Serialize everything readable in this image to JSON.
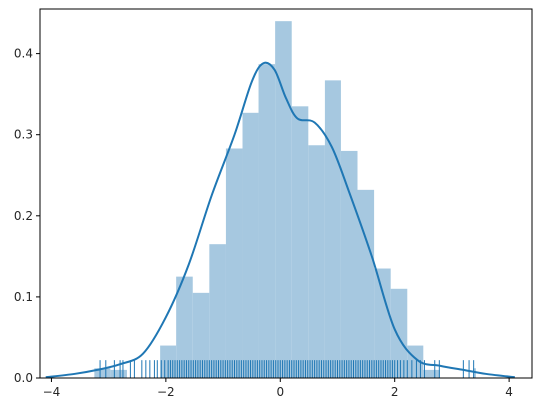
{
  "chart_data": {
    "type": "histogram",
    "title": "",
    "xlabel": "",
    "ylabel": "",
    "xlim": [
      -4.2,
      4.4
    ],
    "ylim": [
      0,
      0.455
    ],
    "xticks": [
      -4,
      -2,
      0,
      2,
      4
    ],
    "xtick_labels": [
      "−4",
      "−2",
      "0",
      "2",
      "4"
    ],
    "yticks": [
      0.0,
      0.1,
      0.2,
      0.3,
      0.4
    ],
    "ytick_labels": [
      "0.0",
      "0.1",
      "0.2",
      "0.3",
      "0.4"
    ],
    "grid": false,
    "legend": "none",
    "colors": {
      "bars": "#a6c8e0",
      "kde": "#1f77b4",
      "rug": "#1f77b4",
      "axes": "#000000"
    },
    "histogram": {
      "bin_edges": [
        -3.25,
        -2.97,
        -2.68,
        -2.39,
        -2.1,
        -1.82,
        -1.53,
        -1.24,
        -0.95,
        -0.66,
        -0.38,
        -0.09,
        0.2,
        0.49,
        0.78,
        1.06,
        1.35,
        1.64,
        1.93,
        2.22,
        2.5,
        2.79,
        3.08,
        3.37,
        3.42
      ],
      "densities": [
        0.012,
        0.01,
        0.0,
        0.0,
        0.04,
        0.125,
        0.105,
        0.165,
        0.283,
        0.327,
        0.387,
        0.44,
        0.335,
        0.287,
        0.367,
        0.28,
        0.232,
        0.135,
        0.11,
        0.04,
        0.01,
        0.0,
        0.0,
        0.012
      ]
    },
    "kde": {
      "x": [
        -4.1,
        -3.6,
        -3.2,
        -2.8,
        -2.4,
        -2.0,
        -1.6,
        -1.2,
        -0.8,
        -0.5,
        -0.3,
        -0.1,
        0.1,
        0.3,
        0.6,
        0.9,
        1.2,
        1.6,
        2.0,
        2.4,
        2.8,
        3.2,
        3.6,
        4.1
      ],
      "y": [
        0.001,
        0.005,
        0.01,
        0.017,
        0.03,
        0.075,
        0.14,
        0.225,
        0.3,
        0.365,
        0.388,
        0.38,
        0.345,
        0.32,
        0.315,
        0.285,
        0.23,
        0.15,
        0.06,
        0.022,
        0.015,
        0.01,
        0.005,
        0.001
      ]
    },
    "rug": {
      "height": 0.022,
      "x": [
        -3.15,
        -3.05,
        -2.9,
        -2.8,
        -2.75,
        -2.62,
        -2.55,
        -2.42,
        -2.35,
        -2.28,
        -2.2,
        -2.15,
        -2.08,
        -2.02,
        -1.96,
        -1.92,
        -1.88,
        -1.84,
        -1.8,
        -1.76,
        -1.72,
        -1.68,
        -1.64,
        -1.6,
        -1.56,
        -1.52,
        -1.48,
        -1.44,
        -1.4,
        -1.36,
        -1.32,
        -1.28,
        -1.24,
        -1.2,
        -1.16,
        -1.12,
        -1.08,
        -1.04,
        -1.0,
        -0.96,
        -0.92,
        -0.88,
        -0.84,
        -0.8,
        -0.76,
        -0.72,
        -0.68,
        -0.64,
        -0.6,
        -0.56,
        -0.52,
        -0.48,
        -0.44,
        -0.4,
        -0.36,
        -0.32,
        -0.28,
        -0.24,
        -0.2,
        -0.16,
        -0.12,
        -0.08,
        -0.04,
        0.0,
        0.04,
        0.08,
        0.12,
        0.16,
        0.2,
        0.24,
        0.28,
        0.32,
        0.36,
        0.4,
        0.44,
        0.48,
        0.52,
        0.56,
        0.6,
        0.64,
        0.68,
        0.72,
        0.76,
        0.8,
        0.84,
        0.88,
        0.92,
        0.96,
        1.0,
        1.04,
        1.08,
        1.12,
        1.16,
        1.2,
        1.24,
        1.28,
        1.32,
        1.36,
        1.4,
        1.44,
        1.48,
        1.52,
        1.56,
        1.6,
        1.64,
        1.68,
        1.72,
        1.76,
        1.8,
        1.84,
        1.88,
        1.92,
        1.96,
        2.0,
        2.05,
        2.1,
        2.16,
        2.22,
        2.3,
        2.38,
        2.45,
        2.52,
        2.7,
        2.78,
        3.2,
        3.3,
        3.38
      ]
    }
  }
}
